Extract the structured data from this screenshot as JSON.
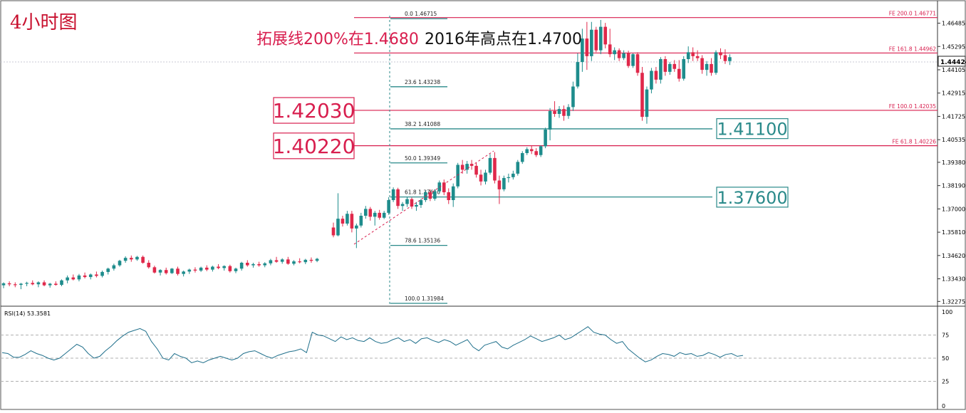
{
  "chart_title": "4小时图",
  "annotation_ext": "拓展线200%在1.4680",
  "annotation_high": "2016年高点在1.4700",
  "colors": {
    "bull": "#1e8c8c",
    "bear": "#e0284a",
    "level": "#d81e4e",
    "fib": "#2a8a8a",
    "axis": "#333333",
    "grid": "#bbbbbb"
  },
  "chart_data": [
    {
      "type": "candlestick",
      "ylim": [
        1.3225,
        1.4745
      ],
      "y_ticks": [
        "1.46485",
        "1.45295",
        "1.44105",
        "1.42915",
        "1.41725",
        "1.40535",
        "1.39380",
        "1.38190",
        "1.37000",
        "1.35810",
        "1.34620",
        "1.33430",
        "1.32275"
      ],
      "current_price": "1.44424",
      "level_boxes": [
        {
          "label": "1.42030",
          "value": 1.4203,
          "color": "#d81e4e"
        },
        {
          "label": "1.40220",
          "value": 1.4022,
          "color": "#d81e4e"
        },
        {
          "label": "1.41100",
          "value": 1.411,
          "color": "#2a8a8a"
        },
        {
          "label": "1.37600",
          "value": 1.376,
          "color": "#2a8a8a"
        }
      ],
      "fe_levels": [
        {
          "label": "FE 200.0  1.46771",
          "value": 1.46771
        },
        {
          "label": "FE 161.8  1.44962",
          "value": 1.44962
        },
        {
          "label": "FE 100.0  1.42035",
          "value": 1.42035
        },
        {
          "label": "FE 61.8  1.40226",
          "value": 1.40226
        }
      ],
      "fib_levels": [
        {
          "label": "0.0  1.46715",
          "value": 1.46715
        },
        {
          "label": "23.6  1.43238",
          "value": 1.43238
        },
        {
          "label": "38.2  1.41088",
          "value": 1.41088
        },
        {
          "label": "50.0  1.39349",
          "value": 1.39349
        },
        {
          "label": "61.8  1.37610",
          "value": 1.3761
        },
        {
          "label": "78.6  1.35136",
          "value": 1.35136
        },
        {
          "label": "100.0  1.31984",
          "value": 1.31984
        }
      ],
      "candles_ohlc": [
        [
          1.331,
          1.3325,
          1.3295,
          1.332
        ],
        [
          1.332,
          1.333,
          1.3305,
          1.3315
        ],
        [
          1.3315,
          1.3325,
          1.33,
          1.3312
        ],
        [
          1.3312,
          1.3322,
          1.329,
          1.3318
        ],
        [
          1.3318,
          1.3328,
          1.3305,
          1.3322
        ],
        [
          1.3322,
          1.3335,
          1.331,
          1.3315
        ],
        [
          1.3315,
          1.333,
          1.33,
          1.3325
        ],
        [
          1.3325,
          1.3335,
          1.3305,
          1.331
        ],
        [
          1.331,
          1.3322,
          1.3298,
          1.3318
        ],
        [
          1.3318,
          1.333,
          1.3308,
          1.3312
        ],
        [
          1.3312,
          1.334,
          1.3305,
          1.3335
        ],
        [
          1.3335,
          1.336,
          1.332,
          1.335
        ],
        [
          1.335,
          1.3365,
          1.3335,
          1.334
        ],
        [
          1.334,
          1.3368,
          1.333,
          1.336
        ],
        [
          1.336,
          1.3375,
          1.3345,
          1.3352
        ],
        [
          1.3352,
          1.337,
          1.334,
          1.3365
        ],
        [
          1.3365,
          1.338,
          1.335,
          1.3358
        ],
        [
          1.3358,
          1.3385,
          1.335,
          1.3378
        ],
        [
          1.3378,
          1.34,
          1.3365,
          1.3395
        ],
        [
          1.3395,
          1.342,
          1.3385,
          1.3412
        ],
        [
          1.3412,
          1.344,
          1.3405,
          1.3435
        ],
        [
          1.3435,
          1.3458,
          1.3425,
          1.345
        ],
        [
          1.345,
          1.3462,
          1.343,
          1.3442
        ],
        [
          1.3442,
          1.346,
          1.3435,
          1.3455
        ],
        [
          1.3455,
          1.3462,
          1.342,
          1.3425
        ],
        [
          1.3425,
          1.3438,
          1.3395,
          1.3402
        ],
        [
          1.3402,
          1.341,
          1.337,
          1.3375
        ],
        [
          1.3375,
          1.3392,
          1.336,
          1.3388
        ],
        [
          1.3388,
          1.34,
          1.3365,
          1.3372
        ],
        [
          1.3372,
          1.3398,
          1.3368,
          1.3395
        ],
        [
          1.3395,
          1.3405,
          1.336,
          1.3368
        ],
        [
          1.3368,
          1.3385,
          1.3355,
          1.338
        ],
        [
          1.338,
          1.3395,
          1.3368,
          1.339
        ],
        [
          1.339,
          1.3402,
          1.3375,
          1.3385
        ],
        [
          1.3385,
          1.3405,
          1.3378,
          1.34
        ],
        [
          1.34,
          1.3412,
          1.3382,
          1.339
        ],
        [
          1.339,
          1.341,
          1.338,
          1.3405
        ],
        [
          1.3405,
          1.3418,
          1.3392,
          1.3398
        ],
        [
          1.3398,
          1.3412,
          1.3385,
          1.3408
        ],
        [
          1.3408,
          1.3415,
          1.3375,
          1.3382
        ],
        [
          1.3382,
          1.34,
          1.3372,
          1.3395
        ],
        [
          1.3395,
          1.343,
          1.3385,
          1.3425
        ],
        [
          1.3425,
          1.3438,
          1.3405,
          1.3412
        ],
        [
          1.3412,
          1.3425,
          1.34,
          1.3418
        ],
        [
          1.3418,
          1.343,
          1.3405,
          1.3412
        ],
        [
          1.3412,
          1.3428,
          1.3402,
          1.3422
        ],
        [
          1.3422,
          1.3445,
          1.3412,
          1.3438
        ],
        [
          1.3438,
          1.3455,
          1.3425,
          1.343
        ],
        [
          1.343,
          1.3448,
          1.342,
          1.3442
        ],
        [
          1.3442,
          1.3455,
          1.3415,
          1.342
        ],
        [
          1.342,
          1.3438,
          1.3412,
          1.3432
        ],
        [
          1.3432,
          1.3448,
          1.3422,
          1.3428
        ],
        [
          1.3428,
          1.3445,
          1.3418,
          1.344
        ],
        [
          1.344,
          1.3452,
          1.3425,
          1.3435
        ],
        [
          1.3435,
          1.345,
          1.3428,
          1.3445
        ],
        [
          1.3605,
          1.363,
          1.3555,
          1.3565
        ],
        [
          1.3565,
          1.378,
          1.356,
          1.365
        ],
        [
          1.365,
          1.3665,
          1.361,
          1.3625
        ],
        [
          1.3625,
          1.369,
          1.3615,
          1.3675
        ],
        [
          1.3675,
          1.369,
          1.358,
          1.36
        ],
        [
          1.36,
          1.3625,
          1.35,
          1.3615
        ],
        [
          1.3615,
          1.368,
          1.3605,
          1.3665
        ],
        [
          1.3665,
          1.3715,
          1.365,
          1.37
        ],
        [
          1.37,
          1.371,
          1.364,
          1.366
        ],
        [
          1.366,
          1.369,
          1.3615,
          1.368
        ],
        [
          1.368,
          1.3695,
          1.3645,
          1.3655
        ],
        [
          1.3655,
          1.369,
          1.3648,
          1.368
        ],
        [
          1.368,
          1.376,
          1.367,
          1.3745
        ],
        [
          1.3745,
          1.381,
          1.3735,
          1.38
        ],
        [
          1.38,
          1.3808,
          1.37,
          1.3715
        ],
        [
          1.3715,
          1.3735,
          1.369,
          1.3725
        ],
        [
          1.3725,
          1.3762,
          1.371,
          1.375
        ],
        [
          1.375,
          1.3758,
          1.37,
          1.3712
        ],
        [
          1.3712,
          1.3735,
          1.369,
          1.372
        ],
        [
          1.372,
          1.3752,
          1.3705,
          1.3745
        ],
        [
          1.3745,
          1.3795,
          1.3735,
          1.3785
        ],
        [
          1.3785,
          1.38,
          1.374,
          1.3752
        ],
        [
          1.3752,
          1.38,
          1.3742,
          1.379
        ],
        [
          1.379,
          1.3845,
          1.378,
          1.3835
        ],
        [
          1.3835,
          1.385,
          1.377,
          1.3785
        ],
        [
          1.3785,
          1.3805,
          1.3725,
          1.3745
        ],
        [
          1.3745,
          1.383,
          1.371,
          1.3815
        ],
        [
          1.3815,
          1.3935,
          1.3805,
          1.3925
        ],
        [
          1.3925,
          1.395,
          1.388,
          1.39
        ],
        [
          1.39,
          1.3945,
          1.388,
          1.393
        ],
        [
          1.393,
          1.395,
          1.39,
          1.392
        ],
        [
          1.392,
          1.3935,
          1.386,
          1.3875
        ],
        [
          1.3875,
          1.39,
          1.382,
          1.384
        ],
        [
          1.384,
          1.39,
          1.3825,
          1.3885
        ],
        [
          1.3885,
          1.398,
          1.3875,
          1.396
        ],
        [
          1.396,
          1.399,
          1.383,
          1.3845
        ],
        [
          1.3845,
          1.387,
          1.3725,
          1.38
        ],
        [
          1.38,
          1.387,
          1.379,
          1.3858
        ],
        [
          1.3858,
          1.388,
          1.3835,
          1.3862
        ],
        [
          1.3862,
          1.3895,
          1.385,
          1.388
        ],
        [
          1.388,
          1.395,
          1.387,
          1.394
        ],
        [
          1.394,
          1.3995,
          1.393,
          1.3985
        ],
        [
          1.3985,
          1.4015,
          1.3975,
          1.4005
        ],
        [
          1.4005,
          1.4025,
          1.398,
          1.3995
        ],
        [
          1.3995,
          1.401,
          1.3965,
          1.3975
        ],
        [
          1.3975,
          1.4025,
          1.3965,
          1.402
        ],
        [
          1.402,
          1.4115,
          1.401,
          1.4105
        ],
        [
          1.4105,
          1.4215,
          1.405,
          1.42
        ],
        [
          1.42,
          1.425,
          1.417,
          1.4185
        ],
        [
          1.4185,
          1.4225,
          1.4165,
          1.421
        ],
        [
          1.421,
          1.4228,
          1.415,
          1.4175
        ],
        [
          1.4175,
          1.4235,
          1.416,
          1.422
        ],
        [
          1.422,
          1.435,
          1.42,
          1.4325
        ],
        [
          1.4325,
          1.4495,
          1.4315,
          1.445
        ],
        [
          1.445,
          1.462,
          1.44,
          1.457
        ],
        [
          1.457,
          1.4655,
          1.441,
          1.448
        ],
        [
          1.448,
          1.4655,
          1.4455,
          1.4615
        ],
        [
          1.4615,
          1.463,
          1.45,
          1.451
        ],
        [
          1.451,
          1.4665,
          1.449,
          1.463
        ],
        [
          1.463,
          1.465,
          1.452,
          1.454
        ],
        [
          1.454,
          1.462,
          1.4475,
          1.449
        ],
        [
          1.449,
          1.4525,
          1.446,
          1.451
        ],
        [
          1.451,
          1.452,
          1.4455,
          1.447
        ],
        [
          1.447,
          1.451,
          1.446,
          1.4495
        ],
        [
          1.4495,
          1.4508,
          1.442,
          1.443
        ],
        [
          1.443,
          1.4495,
          1.442,
          1.449
        ],
        [
          1.449,
          1.45,
          1.438,
          1.4395
        ],
        [
          1.4395,
          1.4425,
          1.415,
          1.417
        ],
        [
          1.417,
          1.4325,
          1.4135,
          1.431
        ],
        [
          1.431,
          1.442,
          1.429,
          1.4405
        ],
        [
          1.4405,
          1.4425,
          1.434,
          1.436
        ],
        [
          1.436,
          1.4475,
          1.434,
          1.4465
        ],
        [
          1.4465,
          1.448,
          1.438,
          1.44
        ],
        [
          1.44,
          1.445,
          1.4385,
          1.444
        ],
        [
          1.444,
          1.446,
          1.44,
          1.4415
        ],
        [
          1.4415,
          1.446,
          1.435,
          1.4365
        ],
        [
          1.4365,
          1.448,
          1.4355,
          1.4465
        ],
        [
          1.4465,
          1.453,
          1.4445,
          1.45
        ],
        [
          1.45,
          1.4525,
          1.4455,
          1.448
        ],
        [
          1.448,
          1.451,
          1.4455,
          1.447
        ],
        [
          1.447,
          1.4485,
          1.439,
          1.441
        ],
        [
          1.441,
          1.4455,
          1.438,
          1.444
        ],
        [
          1.444,
          1.447,
          1.438,
          1.4395
        ],
        [
          1.4395,
          1.451,
          1.4385,
          1.45
        ],
        [
          1.45,
          1.452,
          1.4465,
          1.4485
        ],
        [
          1.4485,
          1.4515,
          1.444,
          1.4455
        ],
        [
          1.4455,
          1.449,
          1.4435,
          1.4475
        ]
      ]
    },
    {
      "type": "line",
      "name": "RSI(14)",
      "label": "RSI(14) 53.3581",
      "ylim": [
        0,
        100
      ],
      "y_ticks": [
        "100",
        "75",
        "50",
        "25",
        "0"
      ],
      "values": [
        56,
        55,
        51,
        51,
        54,
        58,
        55,
        53,
        50,
        48,
        50,
        55,
        60,
        65,
        62,
        55,
        50,
        52,
        58,
        63,
        69,
        74,
        78,
        80,
        82,
        79,
        68,
        60,
        50,
        48,
        55,
        52,
        50,
        45,
        47,
        45,
        48,
        50,
        52,
        50,
        48,
        50,
        55,
        57,
        58,
        55,
        52,
        50,
        53,
        55,
        57,
        58,
        60,
        56,
        78,
        75,
        74,
        71,
        68,
        73,
        70,
        72,
        69,
        68,
        72,
        68,
        66,
        67,
        70,
        72,
        68,
        70,
        66,
        71,
        72,
        69,
        67,
        70,
        68,
        64,
        67,
        70,
        62,
        58,
        64,
        66,
        68,
        62,
        60,
        64,
        67,
        70,
        74,
        71,
        68,
        70,
        72,
        75,
        70,
        72,
        76,
        80,
        84,
        78,
        76,
        75,
        70,
        66,
        68,
        60,
        55,
        50,
        46,
        48,
        52,
        55,
        54,
        52,
        56,
        54,
        55,
        52,
        53,
        56,
        54,
        51,
        54,
        55,
        52,
        53
      ]
    }
  ]
}
